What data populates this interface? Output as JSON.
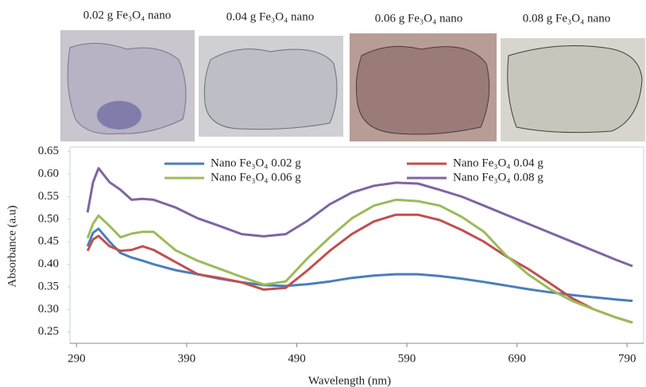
{
  "photos": [
    {
      "label": "0.02 g  Fe₃O₄ nano"
    },
    {
      "label": "0.04 g  Fe₃O₄ nano"
    },
    {
      "label": "0.06 g Fe₃O₄ nano"
    },
    {
      "label": "0.08 g  Fe₃O₄ nano"
    }
  ],
  "chart_data": {
    "type": "line",
    "xlabel": "Wavelength (nm)",
    "ylabel": "Absorbance (a.u)",
    "x": [
      300,
      305,
      310,
      320,
      330,
      340,
      350,
      360,
      380,
      400,
      420,
      440,
      460,
      480,
      500,
      520,
      540,
      560,
      580,
      600,
      620,
      640,
      660,
      680,
      700,
      720,
      740,
      760,
      780,
      795
    ],
    "series": [
      {
        "name": "Nano  Fe₃O₄ 0.02 g",
        "color": "#4a7ebb",
        "values": [
          0.44,
          0.47,
          0.479,
          0.45,
          0.425,
          0.415,
          0.408,
          0.4,
          0.387,
          0.378,
          0.368,
          0.36,
          0.354,
          0.352,
          0.356,
          0.362,
          0.37,
          0.375,
          0.378,
          0.378,
          0.374,
          0.368,
          0.361,
          0.353,
          0.345,
          0.338,
          0.332,
          0.327,
          0.322,
          0.319
        ]
      },
      {
        "name": "Nano  Fe₃O₄ 0.04 g",
        "color": "#c0504d",
        "values": [
          0.43,
          0.455,
          0.463,
          0.44,
          0.43,
          0.432,
          0.44,
          0.432,
          0.405,
          0.378,
          0.37,
          0.36,
          0.344,
          0.348,
          0.387,
          0.43,
          0.467,
          0.495,
          0.51,
          0.51,
          0.498,
          0.476,
          0.45,
          0.418,
          0.39,
          0.358,
          0.325,
          0.3,
          0.282,
          0.271
        ]
      },
      {
        "name": "Nano  Fe₃O₄ 0.06 g",
        "color": "#9bbb59",
        "values": [
          0.458,
          0.49,
          0.508,
          0.485,
          0.46,
          0.468,
          0.472,
          0.472,
          0.431,
          0.408,
          0.39,
          0.372,
          0.355,
          0.362,
          0.414,
          0.46,
          0.502,
          0.53,
          0.543,
          0.54,
          0.53,
          0.505,
          0.472,
          0.42,
          0.378,
          0.345,
          0.319,
          0.3,
          0.282,
          0.271
        ]
      },
      {
        "name": "Nano Fe₃O₄ 0.08 g",
        "color": "#8064a2",
        "values": [
          0.515,
          0.582,
          0.613,
          0.582,
          0.565,
          0.543,
          0.545,
          0.543,
          0.526,
          0.502,
          0.485,
          0.467,
          0.462,
          0.467,
          0.497,
          0.533,
          0.559,
          0.574,
          0.581,
          0.579,
          0.565,
          0.55,
          0.53,
          0.51,
          0.49,
          0.47,
          0.45,
          0.43,
          0.41,
          0.396
        ]
      }
    ],
    "xlim": [
      284,
      805
    ],
    "xticks": [
      290,
      390,
      490,
      590,
      690,
      790
    ],
    "ylim": [
      0.225,
      0.66
    ],
    "yticks": [
      0.25,
      {
        "value": 0.3,
        "label": "0.30"
      },
      0.35,
      {
        "value": 0.4,
        "label": "0.40"
      },
      0.45,
      {
        "value": 0.5,
        "label": "0.50"
      },
      0.55,
      {
        "value": 0.6,
        "label": "0.60"
      },
      0.65
    ],
    "legend": "top"
  }
}
